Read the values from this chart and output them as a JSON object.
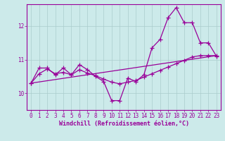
{
  "xlabel": "Windchill (Refroidissement éolien,°C)",
  "background_color": "#cceaea",
  "grid_color": "#aacccc",
  "line_color": "#990099",
  "xlim": [
    -0.5,
    23.5
  ],
  "ylim": [
    9.5,
    12.65
  ],
  "yticks": [
    10,
    11,
    12
  ],
  "xticks": [
    0,
    1,
    2,
    3,
    4,
    5,
    6,
    7,
    8,
    9,
    10,
    11,
    12,
    13,
    14,
    15,
    16,
    17,
    18,
    19,
    20,
    21,
    22,
    23
  ],
  "series1_x": [
    0,
    1,
    2,
    3,
    4,
    5,
    6,
    7,
    8,
    9,
    10,
    11,
    12,
    13,
    14,
    15,
    16,
    17,
    18,
    19,
    20,
    21,
    22,
    23
  ],
  "series1_y": [
    10.3,
    10.75,
    10.75,
    10.55,
    10.75,
    10.55,
    10.85,
    10.7,
    10.5,
    10.35,
    9.78,
    9.78,
    10.45,
    10.35,
    10.55,
    11.35,
    11.6,
    12.25,
    12.55,
    12.1,
    12.1,
    11.5,
    11.5,
    11.1
  ],
  "series2_x": [
    0,
    1,
    2,
    3,
    4,
    5,
    6,
    7,
    8,
    9,
    10,
    11,
    12,
    13,
    14,
    15,
    16,
    17,
    18,
    19,
    20,
    21,
    22,
    23
  ],
  "series2_y": [
    10.3,
    10.58,
    10.72,
    10.58,
    10.62,
    10.55,
    10.7,
    10.6,
    10.52,
    10.42,
    10.33,
    10.28,
    10.33,
    10.38,
    10.48,
    10.58,
    10.68,
    10.78,
    10.88,
    10.98,
    11.08,
    11.12,
    11.12,
    11.12
  ],
  "series3_x": [
    0,
    23
  ],
  "series3_y": [
    10.3,
    11.12
  ],
  "marker": "+",
  "markersize": 4,
  "linewidth": 0.9
}
